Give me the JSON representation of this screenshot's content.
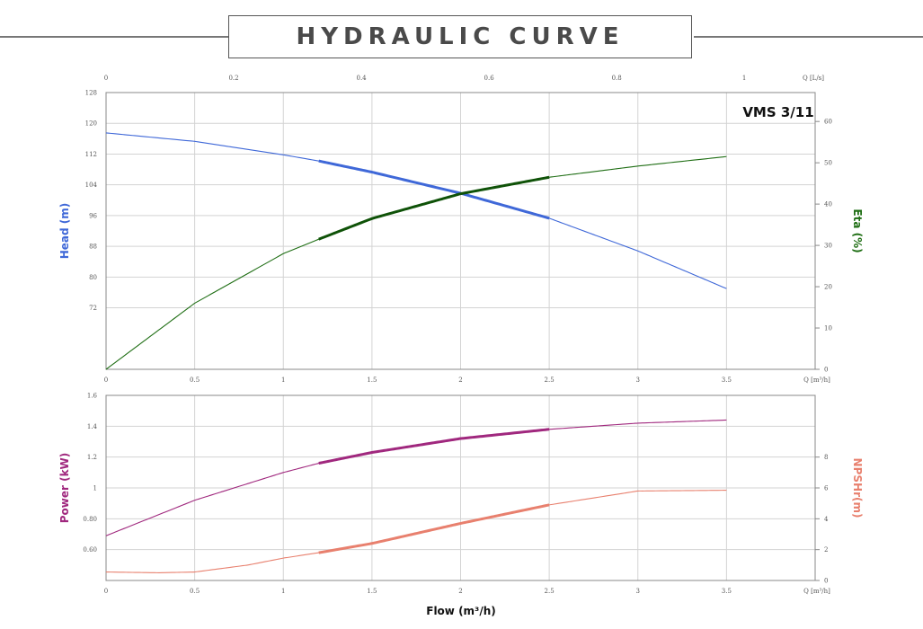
{
  "page_title": "HYDRAULIC CURVE",
  "model": "VMS 3/11",
  "colors": {
    "head": "#3f68d8",
    "eta": "#1f6e14",
    "power": "#a0287e",
    "npshr": "#e8806e",
    "grid": "#d3d3d3"
  },
  "chart_data": [
    {
      "type": "line",
      "id": "head_eta",
      "title": "VMS 3/11",
      "xlabel": "Q [m³/h]",
      "xlim": [
        0,
        4
      ],
      "x_ticks": [
        "0",
        "0.5",
        "1",
        "1.5",
        "2",
        "2.5",
        "3",
        "3.5"
      ],
      "top_axis": {
        "label": "Q [L/s]",
        "xlim": [
          0,
          1.111
        ],
        "ticks": [
          "0",
          "0.2",
          "0.4",
          "0.6",
          "0.8",
          "1"
        ]
      },
      "left_axis": {
        "label": "Head (m)",
        "ylim": [
          56,
          128
        ],
        "ticks": [
          "72",
          "80",
          "88",
          "96",
          "104",
          "112",
          "120",
          "128"
        ]
      },
      "right_axis": {
        "label": "Eta (%)",
        "ylim": [
          0,
          67
        ],
        "ticks": [
          "0",
          "10",
          "20",
          "30",
          "40",
          "50",
          "60"
        ]
      },
      "series": [
        {
          "name": "Head",
          "axis": "left",
          "x": [
            0,
            0.5,
            1,
            1.2,
            1.5,
            2,
            2.5,
            3,
            3.5
          ],
          "y": [
            117.5,
            115.3,
            111.8,
            110.2,
            107.3,
            101.8,
            95.3,
            86.8,
            77.0
          ],
          "highlight_range": [
            1.2,
            2.5
          ]
        },
        {
          "name": "Eta",
          "axis": "right",
          "x": [
            0,
            0.5,
            1,
            1.2,
            1.5,
            2,
            2.5,
            3,
            3.5
          ],
          "y": [
            0,
            16,
            28,
            31.5,
            36.5,
            42.5,
            46.5,
            49.2,
            51.5
          ],
          "highlight_range": [
            1.2,
            2.5
          ]
        }
      ]
    },
    {
      "type": "line",
      "id": "power_npsh",
      "xlabel": "Q [m³/h]",
      "xlim": [
        0,
        4
      ],
      "x_ticks": [
        "0",
        "0.5",
        "1",
        "1.5",
        "2",
        "2.5",
        "3",
        "3.5"
      ],
      "footer_label": "Flow (m³/h)",
      "left_axis": {
        "label": "Power (kW)",
        "ylim": [
          0.4,
          1.6
        ],
        "ticks": [
          "0.60",
          "0.80",
          "1",
          "1.2",
          "1.4",
          "1.6"
        ]
      },
      "right_axis": {
        "label": "NPSHr(m)",
        "ylim": [
          0,
          12
        ],
        "ticks": [
          "0",
          "2",
          "4",
          "6",
          "8"
        ]
      },
      "series": [
        {
          "name": "Power",
          "axis": "left",
          "x": [
            0,
            0.5,
            1,
            1.2,
            1.5,
            2,
            2.5,
            3,
            3.5
          ],
          "y": [
            0.69,
            0.92,
            1.1,
            1.16,
            1.23,
            1.32,
            1.38,
            1.42,
            1.44
          ],
          "highlight_range": [
            1.2,
            2.5
          ]
        },
        {
          "name": "NPSHr",
          "axis": "right",
          "x": [
            0,
            0.3,
            0.5,
            0.8,
            1,
            1.2,
            1.5,
            2,
            2.5,
            3,
            3.5
          ],
          "y": [
            0.55,
            0.5,
            0.55,
            1.0,
            1.45,
            1.8,
            2.4,
            3.7,
            4.9,
            5.8,
            5.85
          ],
          "highlight_range": [
            1.2,
            2.5
          ]
        }
      ]
    }
  ]
}
